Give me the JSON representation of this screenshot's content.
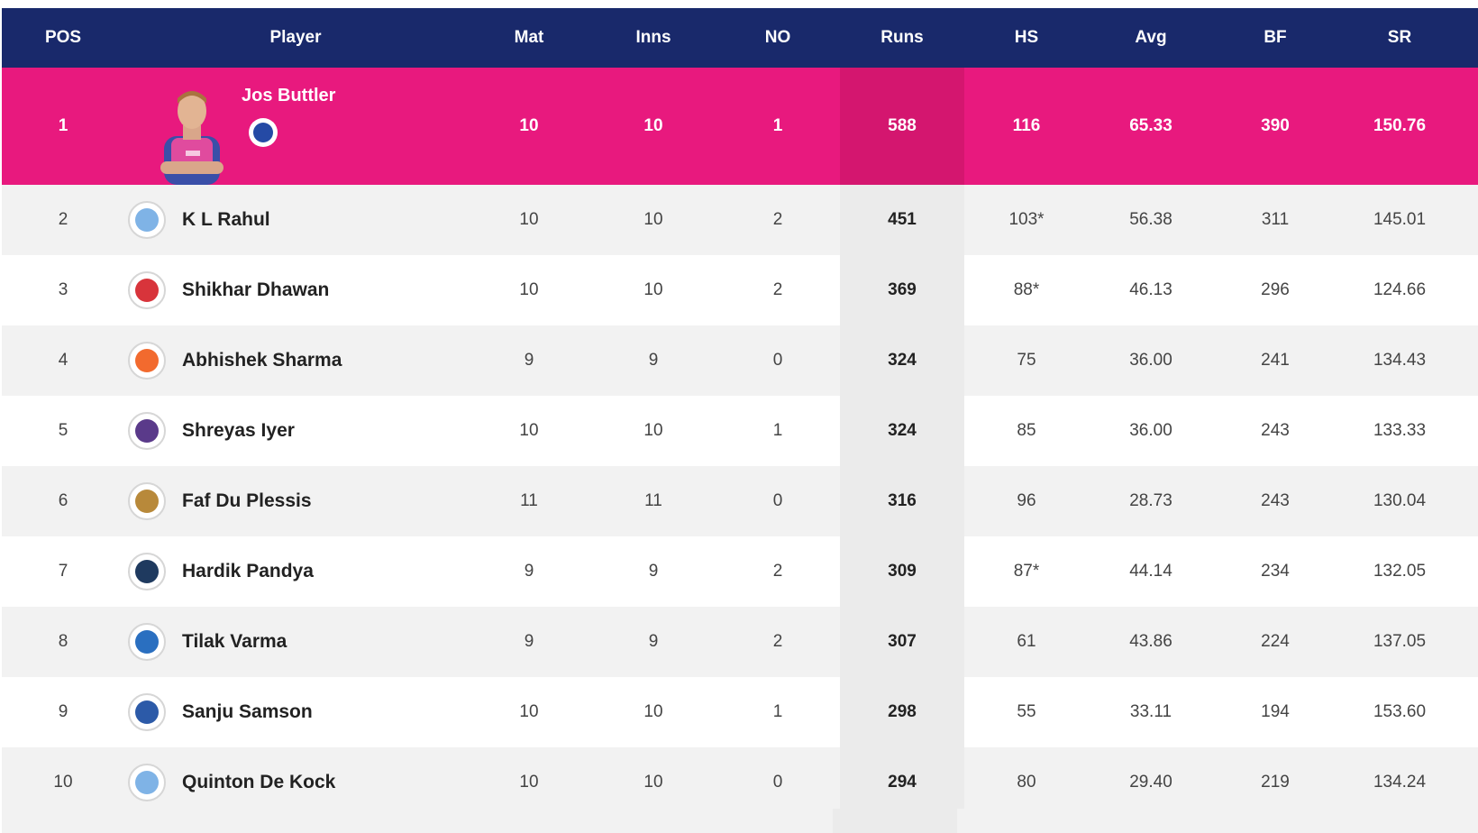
{
  "header": {
    "pos": "POS",
    "player": "Player",
    "mat": "Mat",
    "inns": "Inns",
    "no": "NO",
    "runs": "Runs",
    "hs": "HS",
    "avg": "Avg",
    "bf": "BF",
    "sr": "SR"
  },
  "featured": {
    "pos": "1",
    "name": "Jos Buttler",
    "mat": "10",
    "inns": "10",
    "no": "1",
    "runs": "588",
    "hs": "116",
    "avg": "65.33",
    "bf": "390",
    "sr": "150.76",
    "team_icon": "rajasthan-royals-icon"
  },
  "rows": [
    {
      "pos": "2",
      "name": "K L Rahul",
      "mat": "10",
      "inns": "10",
      "no": "2",
      "runs": "451",
      "hs": "103*",
      "avg": "56.38",
      "bf": "311",
      "sr": "145.01",
      "team_icon": "lucknow-super-giants-icon",
      "team_color": "#7fb3e6"
    },
    {
      "pos": "3",
      "name": "Shikhar Dhawan",
      "mat": "10",
      "inns": "10",
      "no": "2",
      "runs": "369",
      "hs": "88*",
      "avg": "46.13",
      "bf": "296",
      "sr": "124.66",
      "team_icon": "punjab-kings-icon",
      "team_color": "#d8343b"
    },
    {
      "pos": "4",
      "name": "Abhishek Sharma",
      "mat": "9",
      "inns": "9",
      "no": "0",
      "runs": "324",
      "hs": "75",
      "avg": "36.00",
      "bf": "241",
      "sr": "134.43",
      "team_icon": "sunrisers-hyderabad-icon",
      "team_color": "#f26a2e"
    },
    {
      "pos": "5",
      "name": "Shreyas Iyer",
      "mat": "10",
      "inns": "10",
      "no": "1",
      "runs": "324",
      "hs": "85",
      "avg": "36.00",
      "bf": "243",
      "sr": "133.33",
      "team_icon": "kolkata-knight-riders-icon",
      "team_color": "#5a3a8a"
    },
    {
      "pos": "6",
      "name": "Faf Du Plessis",
      "mat": "11",
      "inns": "11",
      "no": "0",
      "runs": "316",
      "hs": "96",
      "avg": "28.73",
      "bf": "243",
      "sr": "130.04",
      "team_icon": "royal-challengers-icon",
      "team_color": "#b8893a"
    },
    {
      "pos": "7",
      "name": "Hardik Pandya",
      "mat": "9",
      "inns": "9",
      "no": "2",
      "runs": "309",
      "hs": "87*",
      "avg": "44.14",
      "bf": "234",
      "sr": "132.05",
      "team_icon": "gujarat-titans-icon",
      "team_color": "#1f3a5f"
    },
    {
      "pos": "8",
      "name": "Tilak Varma",
      "mat": "9",
      "inns": "9",
      "no": "2",
      "runs": "307",
      "hs": "61",
      "avg": "43.86",
      "bf": "224",
      "sr": "137.05",
      "team_icon": "mumbai-indians-icon",
      "team_color": "#2a6fc0"
    },
    {
      "pos": "9",
      "name": "Sanju Samson",
      "mat": "10",
      "inns": "10",
      "no": "1",
      "runs": "298",
      "hs": "55",
      "avg": "33.11",
      "bf": "194",
      "sr": "153.60",
      "team_icon": "rajasthan-royals-icon",
      "team_color": "#2c5aa8"
    },
    {
      "pos": "10",
      "name": "Quinton De Kock",
      "mat": "10",
      "inns": "10",
      "no": "0",
      "runs": "294",
      "hs": "80",
      "avg": "29.40",
      "bf": "219",
      "sr": "134.24",
      "team_icon": "lucknow-super-giants-icon",
      "team_color": "#7fb3e6"
    }
  ]
}
